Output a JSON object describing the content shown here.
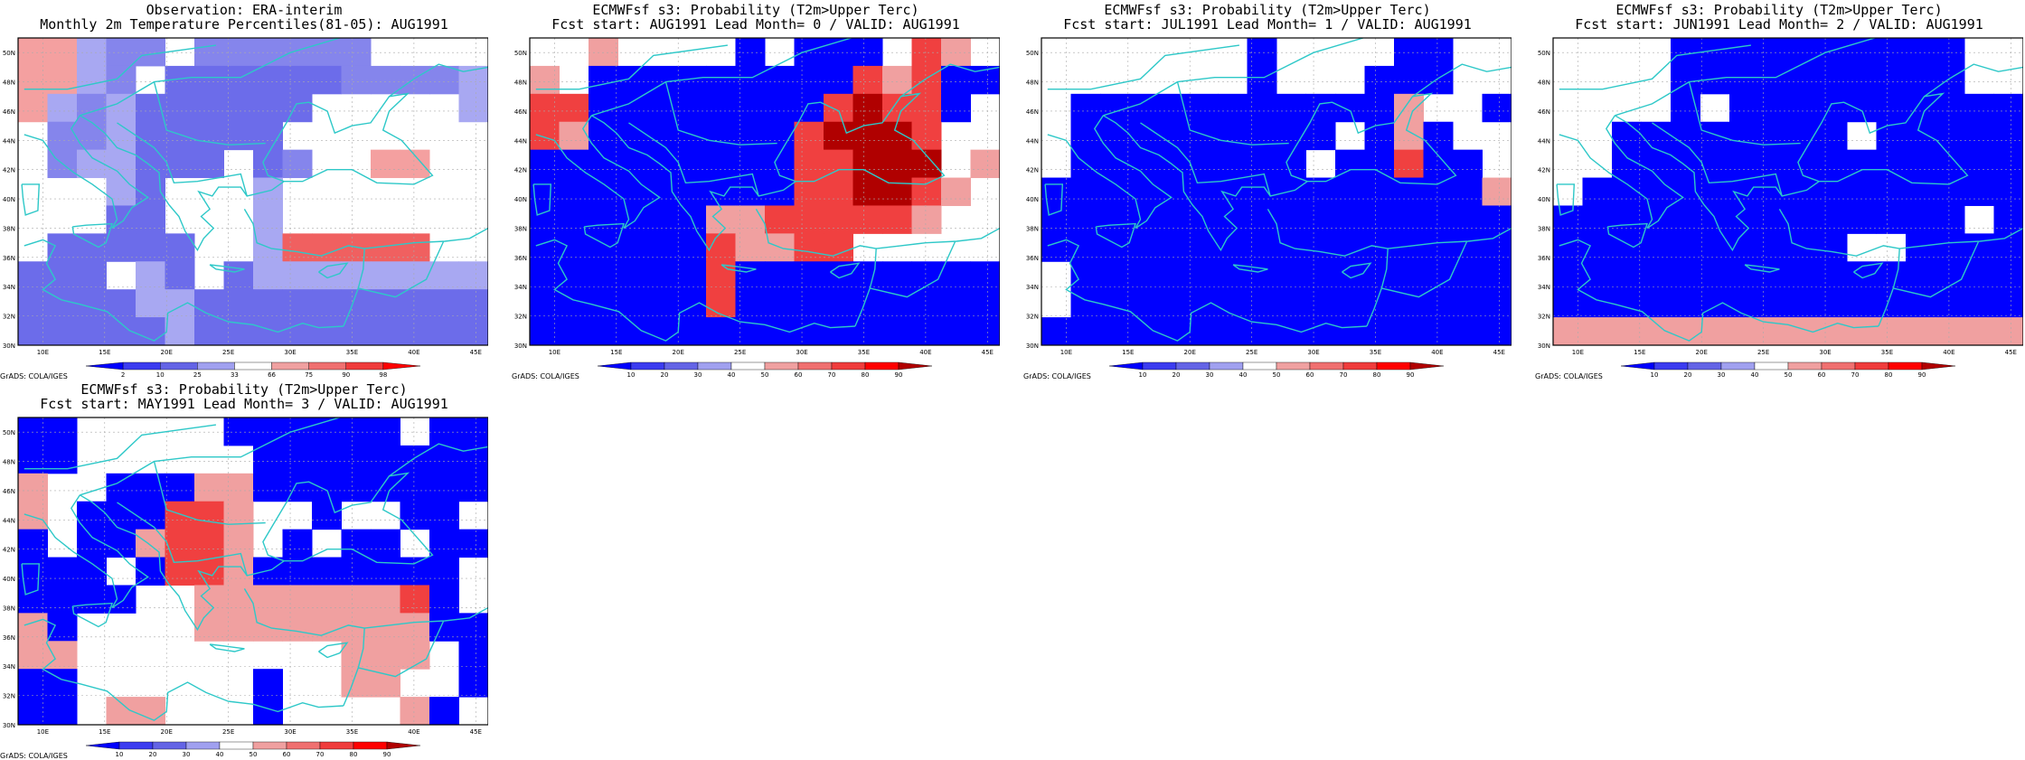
{
  "map": {
    "lon_ticks": [
      "10E",
      "15E",
      "20E",
      "25E",
      "30E",
      "35E",
      "40E",
      "45E"
    ],
    "lat_ticks": [
      "30N",
      "32N",
      "34N",
      "36N",
      "38N",
      "40N",
      "42N",
      "44N",
      "46N",
      "48N",
      "50N"
    ],
    "lon_range": [
      8,
      46
    ],
    "lat_range": [
      30,
      51
    ],
    "coast_color": "#2ec8c8",
    "grid": true
  },
  "credit": "GrADS: COLA/IGES",
  "colorbars": {
    "percentile": {
      "labels": [
        "2",
        "10",
        "25",
        "33",
        "66",
        "75",
        "90",
        "98"
      ],
      "colors": [
        "#0000ff",
        "#3c3cf0",
        "#6464e6",
        "#a0a0f0",
        "#ffffff",
        "#f0a0a0",
        "#f07070",
        "#f03c3c",
        "#ff0000"
      ]
    },
    "probability": {
      "labels": [
        "10",
        "20",
        "30",
        "40",
        "50",
        "60",
        "70",
        "80",
        "90"
      ],
      "colors": [
        "#0000ff",
        "#3c3cf0",
        "#6464e6",
        "#a0a0f0",
        "#ffffff",
        "#f0a0a0",
        "#f07070",
        "#f03c3c",
        "#ff0000",
        "#b00000"
      ]
    }
  },
  "panels": [
    {
      "id": "obs",
      "title1": "Observation: ERA-interim",
      "title2": "Monthly 2m Temperature Percentiles(81-05): AUG1991",
      "colorbar": "percentile",
      "grid": [
        "PPaww0wwwwww0000",
        "PPaw0bbbbbbwwwwa",
        "Pawabbbbbb00000a",
        "0wwabbbbb0000000",
        "0waabbb0bw00PP00",
        "000ab000a0000000",
        "000bb000a0000000",
        "0bbbbb00aRRRRR00",
        "bbb0ab0baaaaaaaa",
        "bbbbaabbbbbbbbbb",
        "bbbbbabbbbbbbbbb"
      ]
    },
    {
      "id": "lead0",
      "title1": "ECMWFsf s3: Probability (T2m>Upper Terc)",
      "title2": "Fcst start: AUG1991  Lead Month= 0 / VALID: AUG1991",
      "colorbar": "probability",
      "grid": [
        "00P0000B0BBB0RP0",
        "P0BBBBBBBBBRPRBB",
        "RRBBBBBBBBRDRRB0",
        "RPBBBBBBBRDDDR00",
        "BBBBBBBBBRRDDD0P",
        "BBBBBBBBBRRDDRP0",
        "BBBBBBPPRRRRRP00",
        "BBBBBBRPPRR00000",
        "BBBBBBRBBBBBBBBB",
        "BBBBBBRBBBBBBBBB",
        "BBBBBBBBBBBBBBBB"
      ]
    },
    {
      "id": "lead1",
      "title1": "ECMWFsf s3: Probability (T2m>Upper Terc)",
      "title2": "Fcst start: JUL1991  Lead Month= 1 / VALID: AUG1991",
      "colorbar": "probability",
      "grid": [
        "0000000B0000BB00",
        "0000000B000BBB00",
        "0BBBBBBBBBBBP00B",
        "0BBBBBBBBB0BPB00",
        "0BBBBBBBB0BBRBB0",
        "BBBBBBBBBBBBBBBP",
        "BBBBBBBBBBBBBBBB",
        "BBBBBBBBBBBBBBBB",
        "0BBBBBBBBBBBBBBB",
        "0BBBBBBBBBBBBBBB",
        "BBBBBBBBBBBBBBBB"
      ]
    },
    {
      "id": "lead2",
      "title1": "ECMWFsf s3: Probability (T2m>Upper Terc)",
      "title2": "Fcst start: JUN1991  Lead Month= 2 / VALID: AUG1991",
      "colorbar": "probability",
      "grid": [
        "0000BBBBBBBBBB00",
        "0000BBBBBBBBBB00",
        "0000B0BBBBBBBBBB",
        "00BBBBBBBB0BBBBB",
        "00BBBBBBBBBBBBBB",
        "0BBBBBBBBBBBBBBB",
        "BBBBBBBBBBBBBB0B",
        "BBBBBBBBBB00BBBB",
        "BBBBBBBBBBBBBBBB",
        "BBBBBBBBBBBBBBBB",
        "PPPPPPPPPPPPPPPP"
      ]
    },
    {
      "id": "lead3",
      "title1": "ECMWFsf s3: Probability (T2m>Upper Terc)",
      "title2": "Fcst start: MAY1991  Lead Month= 3 / VALID: AUG1991",
      "colorbar": "probability",
      "grid": [
        "BB00000BBBBBB0BB",
        "BB000000BBBBBBBB",
        "P00BBBPPBBBBBBBB",
        "P0BBBRRP00B00BB0",
        "B0BBPRRP0B0BB0BB",
        "BBB0BRRPBBBBBBB0",
        "BBBB00PPPPPPPRB0",
        "PB0000PPPPPPPPBB",
        "PP000000000PPP0B",
        "BB000000B00PP00B",
        "BB0PP000B0000PB0"
      ]
    }
  ]
}
